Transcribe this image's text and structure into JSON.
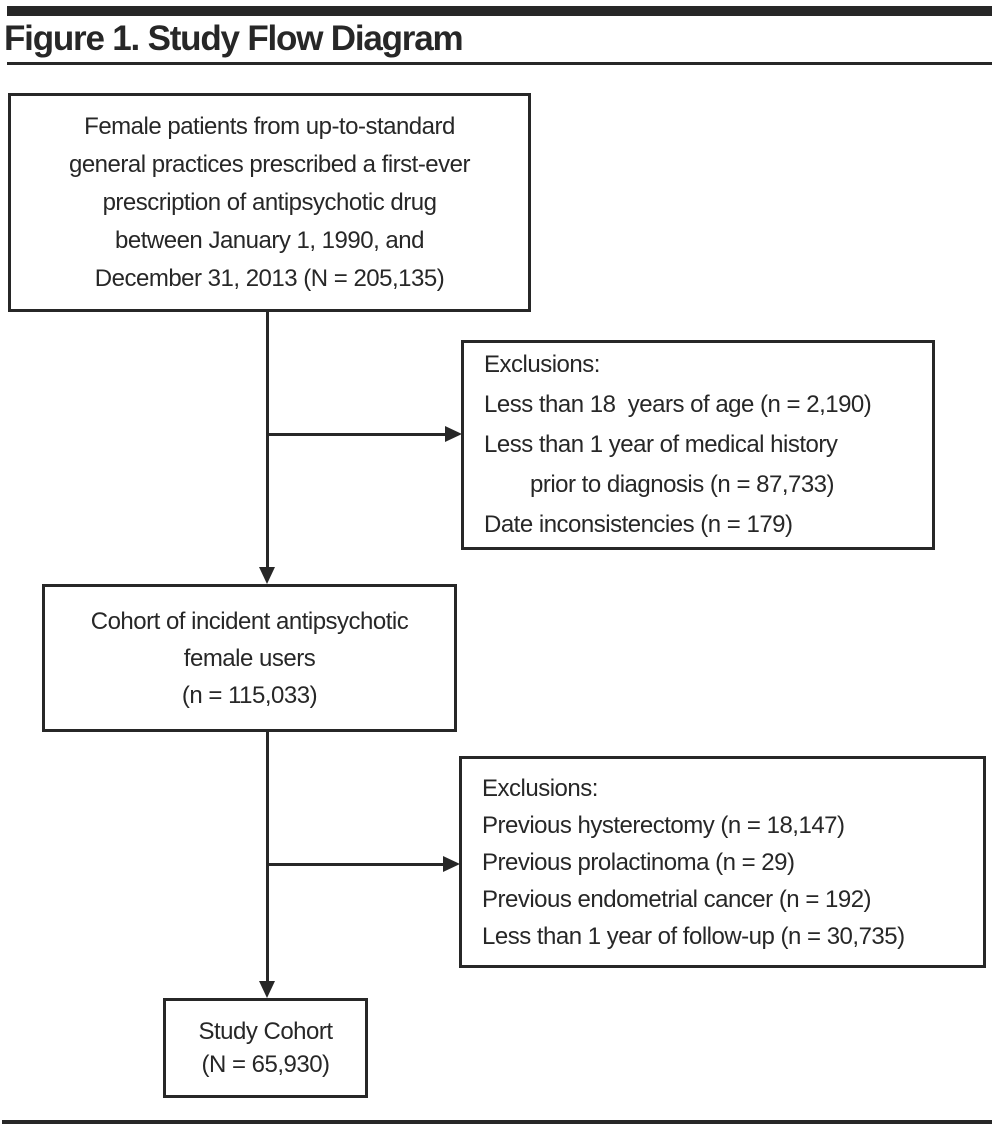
{
  "title": "Figure 1. Study Flow Diagram",
  "colors": {
    "ink": "#272727",
    "background": "#ffffff"
  },
  "diagram": {
    "source_box": {
      "lines": [
        "Female patients from up-to-standard",
        "general practices prescribed a first-ever",
        "prescription of antipsychotic drug",
        "between January 1, 1990, and",
        "December 31, 2013 (N = 205,135)"
      ]
    },
    "exclusions_1": {
      "lines": [
        "Exclusions:",
        "Less than 18  years of age (n = 2,190)",
        "Less than 1 year of medical history",
        "prior to diagnosis (n = 87,733)",
        "Date inconsistencies (n = 179)"
      ]
    },
    "cohort_box": {
      "lines": [
        "Cohort of incident antipsychotic",
        "female users",
        "(n = 115,033)"
      ]
    },
    "exclusions_2": {
      "lines": [
        "Exclusions:",
        "Previous hysterectomy (n = 18,147)",
        "Previous prolactinoma (n = 29)",
        "Previous endometrial cancer (n = 192)",
        "Less than 1 year of follow-up (n = 30,735)"
      ]
    },
    "study_cohort_box": {
      "lines": [
        "Study Cohort",
        "(N = 65,930)"
      ]
    }
  }
}
